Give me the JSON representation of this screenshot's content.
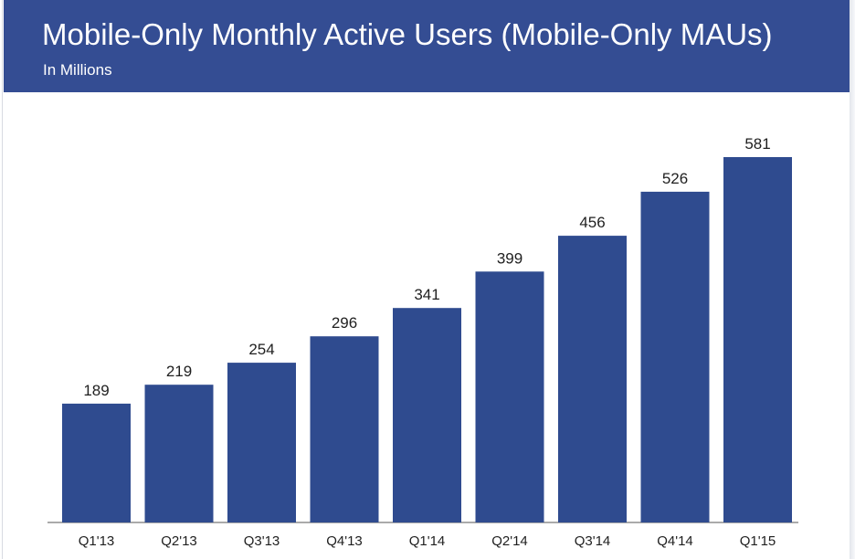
{
  "header": {
    "title": "Mobile-Only Monthly Active Users (Mobile-Only MAUs)",
    "subtitle": "In Millions"
  },
  "colors": {
    "header_bg": "#344d93",
    "bar": "#2f4b8f",
    "text": "#1f1f1f",
    "axis": "#555555"
  },
  "chart_data": {
    "type": "bar",
    "title": "Mobile-Only Monthly Active Users (Mobile-Only MAUs)",
    "subtitle": "In Millions",
    "categories": [
      "Q1'13",
      "Q2'13",
      "Q3'13",
      "Q4'13",
      "Q1'14",
      "Q2'14",
      "Q3'14",
      "Q4'14",
      "Q1'15"
    ],
    "values": [
      189,
      219,
      254,
      296,
      341,
      399,
      456,
      526,
      581
    ],
    "data_labels": [
      "189",
      "219",
      "254",
      "296",
      "341",
      "399",
      "456",
      "526",
      "581"
    ],
    "xlabel": "",
    "ylabel": "",
    "ylim": [
      0,
      590
    ],
    "grid": false,
    "legend": "none"
  }
}
